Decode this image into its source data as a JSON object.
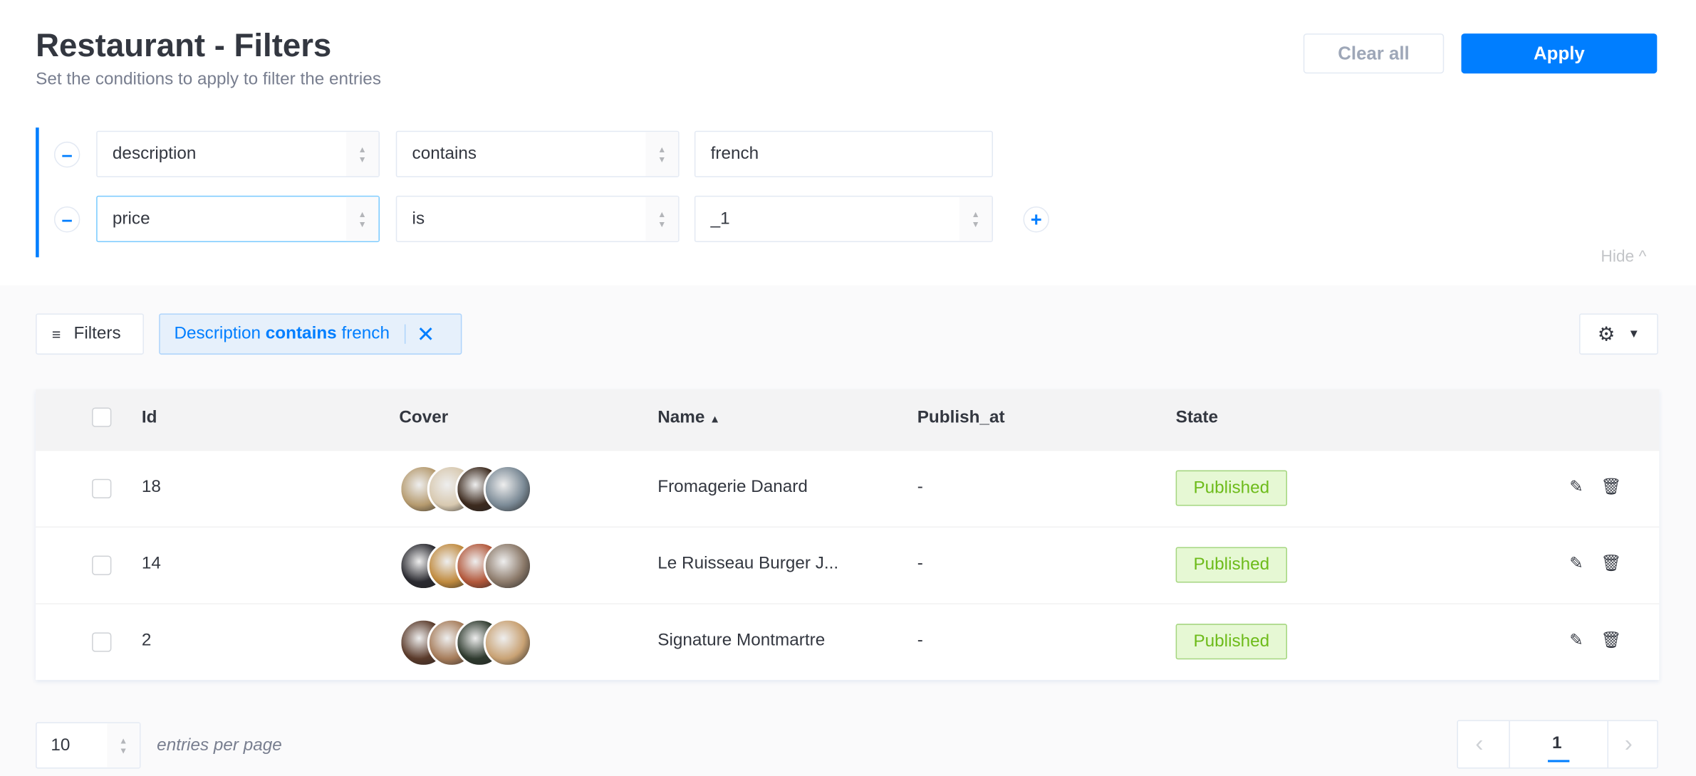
{
  "header": {
    "title": "Restaurant - Filters",
    "subtitle": "Set the conditions to apply to filter the entries",
    "clear_all": "Clear all",
    "apply": "Apply"
  },
  "filters": [
    {
      "field": "description",
      "operator": "contains",
      "value": "french"
    },
    {
      "field": "price",
      "operator": "is",
      "value": "_1"
    }
  ],
  "hide_label": "Hide",
  "toolbar": {
    "filters_label": "Filters",
    "chip": {
      "field": "Description",
      "operator": "contains",
      "value": "french"
    }
  },
  "table": {
    "columns": [
      "Id",
      "Cover",
      "Name",
      "Publish_at",
      "State"
    ],
    "sort": {
      "column": "Name",
      "direction": "asc"
    },
    "rows": [
      {
        "id": "18",
        "name": "Fromagerie Danard",
        "publish_at": "-",
        "state": "Published",
        "cover_colors": [
          "#b59a6e",
          "#d8c9b0",
          "#3c2a1e",
          "#7b8a96"
        ]
      },
      {
        "id": "14",
        "name": "Le Ruisseau Burger J...",
        "publish_at": "-",
        "state": "Published",
        "cover_colors": [
          "#2a2a30",
          "#c08a3e",
          "#b2573a",
          "#8c7a6a"
        ]
      },
      {
        "id": "2",
        "name": "Signature Montmartre",
        "publish_at": "-",
        "state": "Published",
        "cover_colors": [
          "#5a3a2a",
          "#a67c5a",
          "#2e3a2e",
          "#c9a274"
        ]
      }
    ]
  },
  "footer": {
    "per_page": "10",
    "per_page_label": "entries per page",
    "current_page": "1"
  },
  "colors": {
    "accent": "#007eff",
    "published_bg": "#e6f8d4",
    "published_text": "#6dbb1a"
  }
}
